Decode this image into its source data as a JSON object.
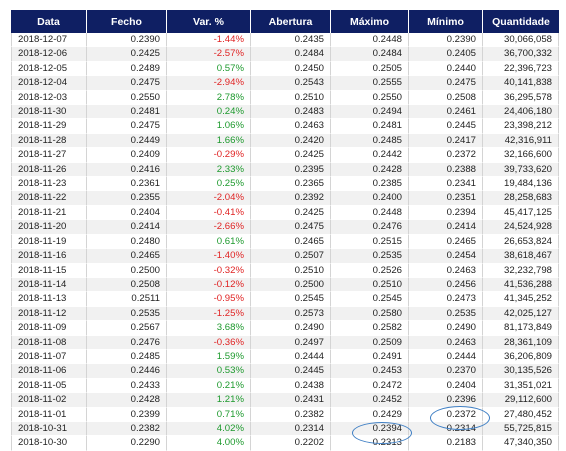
{
  "table": {
    "headers": [
      "Data",
      "Fecho",
      "Var. %",
      "Abertura",
      "Máximo",
      "Mínimo",
      "Quantidade"
    ],
    "rows": [
      {
        "data": "2018-12-07",
        "fecho": "0.2390",
        "var": "-1.44%",
        "sign": "neg",
        "abertura": "0.2435",
        "maximo": "0.2448",
        "minimo": "0.2390",
        "quantidade": "30,066,058"
      },
      {
        "data": "2018-12-06",
        "fecho": "0.2425",
        "var": "-2.57%",
        "sign": "neg",
        "abertura": "0.2484",
        "maximo": "0.2484",
        "minimo": "0.2405",
        "quantidade": "36,700,332"
      },
      {
        "data": "2018-12-05",
        "fecho": "0.2489",
        "var": "0.57%",
        "sign": "pos",
        "abertura": "0.2450",
        "maximo": "0.2505",
        "minimo": "0.2440",
        "quantidade": "22,396,723"
      },
      {
        "data": "2018-12-04",
        "fecho": "0.2475",
        "var": "-2.94%",
        "sign": "neg",
        "abertura": "0.2543",
        "maximo": "0.2555",
        "minimo": "0.2475",
        "quantidade": "40,141,838"
      },
      {
        "data": "2018-12-03",
        "fecho": "0.2550",
        "var": "2.78%",
        "sign": "pos",
        "abertura": "0.2510",
        "maximo": "0.2550",
        "minimo": "0.2508",
        "quantidade": "36,295,578"
      },
      {
        "data": "2018-11-30",
        "fecho": "0.2481",
        "var": "0.24%",
        "sign": "pos",
        "abertura": "0.2483",
        "maximo": "0.2494",
        "minimo": "0.2461",
        "quantidade": "24,406,180"
      },
      {
        "data": "2018-11-29",
        "fecho": "0.2475",
        "var": "1.06%",
        "sign": "pos",
        "abertura": "0.2463",
        "maximo": "0.2481",
        "minimo": "0.2445",
        "quantidade": "23,398,212"
      },
      {
        "data": "2018-11-28",
        "fecho": "0.2449",
        "var": "1.66%",
        "sign": "pos",
        "abertura": "0.2420",
        "maximo": "0.2485",
        "minimo": "0.2417",
        "quantidade": "42,316,911"
      },
      {
        "data": "2018-11-27",
        "fecho": "0.2409",
        "var": "-0.29%",
        "sign": "neg",
        "abertura": "0.2425",
        "maximo": "0.2442",
        "minimo": "0.2372",
        "quantidade": "32,166,600"
      },
      {
        "data": "2018-11-26",
        "fecho": "0.2416",
        "var": "2.33%",
        "sign": "pos",
        "abertura": "0.2395",
        "maximo": "0.2428",
        "minimo": "0.2388",
        "quantidade": "39,733,620"
      },
      {
        "data": "2018-11-23",
        "fecho": "0.2361",
        "var": "0.25%",
        "sign": "pos",
        "abertura": "0.2365",
        "maximo": "0.2385",
        "minimo": "0.2341",
        "quantidade": "19,484,136"
      },
      {
        "data": "2018-11-22",
        "fecho": "0.2355",
        "var": "-2.04%",
        "sign": "neg",
        "abertura": "0.2392",
        "maximo": "0.2400",
        "minimo": "0.2351",
        "quantidade": "28,258,683"
      },
      {
        "data": "2018-11-21",
        "fecho": "0.2404",
        "var": "-0.41%",
        "sign": "neg",
        "abertura": "0.2425",
        "maximo": "0.2448",
        "minimo": "0.2394",
        "quantidade": "45,417,125"
      },
      {
        "data": "2018-11-20",
        "fecho": "0.2414",
        "var": "-2.66%",
        "sign": "neg",
        "abertura": "0.2475",
        "maximo": "0.2476",
        "minimo": "0.2414",
        "quantidade": "24,524,928"
      },
      {
        "data": "2018-11-19",
        "fecho": "0.2480",
        "var": "0.61%",
        "sign": "pos",
        "abertura": "0.2465",
        "maximo": "0.2515",
        "minimo": "0.2465",
        "quantidade": "26,653,824"
      },
      {
        "data": "2018-11-16",
        "fecho": "0.2465",
        "var": "-1.40%",
        "sign": "neg",
        "abertura": "0.2507",
        "maximo": "0.2535",
        "minimo": "0.2454",
        "quantidade": "38,618,467"
      },
      {
        "data": "2018-11-15",
        "fecho": "0.2500",
        "var": "-0.32%",
        "sign": "neg",
        "abertura": "0.2510",
        "maximo": "0.2526",
        "minimo": "0.2463",
        "quantidade": "32,232,798"
      },
      {
        "data": "2018-11-14",
        "fecho": "0.2508",
        "var": "-0.12%",
        "sign": "neg",
        "abertura": "0.2500",
        "maximo": "0.2510",
        "minimo": "0.2456",
        "quantidade": "41,536,288"
      },
      {
        "data": "2018-11-13",
        "fecho": "0.2511",
        "var": "-0.95%",
        "sign": "neg",
        "abertura": "0.2545",
        "maximo": "0.2545",
        "minimo": "0.2473",
        "quantidade": "41,345,252"
      },
      {
        "data": "2018-11-12",
        "fecho": "0.2535",
        "var": "-1.25%",
        "sign": "neg",
        "abertura": "0.2573",
        "maximo": "0.2580",
        "minimo": "0.2535",
        "quantidade": "42,025,127"
      },
      {
        "data": "2018-11-09",
        "fecho": "0.2567",
        "var": "3.68%",
        "sign": "pos",
        "abertura": "0.2490",
        "maximo": "0.2582",
        "minimo": "0.2490",
        "quantidade": "81,173,849"
      },
      {
        "data": "2018-11-08",
        "fecho": "0.2476",
        "var": "-0.36%",
        "sign": "neg",
        "abertura": "0.2497",
        "maximo": "0.2509",
        "minimo": "0.2463",
        "quantidade": "28,361,109"
      },
      {
        "data": "2018-11-07",
        "fecho": "0.2485",
        "var": "1.59%",
        "sign": "pos",
        "abertura": "0.2444",
        "maximo": "0.2491",
        "minimo": "0.2444",
        "quantidade": "36,206,809"
      },
      {
        "data": "2018-11-06",
        "fecho": "0.2446",
        "var": "0.53%",
        "sign": "pos",
        "abertura": "0.2445",
        "maximo": "0.2453",
        "minimo": "0.2370",
        "quantidade": "30,135,526"
      },
      {
        "data": "2018-11-05",
        "fecho": "0.2433",
        "var": "0.21%",
        "sign": "pos",
        "abertura": "0.2438",
        "maximo": "0.2472",
        "minimo": "0.2404",
        "quantidade": "31,351,021"
      },
      {
        "data": "2018-11-02",
        "fecho": "0.2428",
        "var": "1.21%",
        "sign": "pos",
        "abertura": "0.2431",
        "maximo": "0.2452",
        "minimo": "0.2396",
        "quantidade": "29,112,600"
      },
      {
        "data": "2018-11-01",
        "fecho": "0.2399",
        "var": "0.71%",
        "sign": "pos",
        "abertura": "0.2382",
        "maximo": "0.2429",
        "minimo": "0.2372",
        "quantidade": "27,480,452"
      },
      {
        "data": "2018-10-31",
        "fecho": "0.2382",
        "var": "4.02%",
        "sign": "pos",
        "abertura": "0.2314",
        "maximo": "0.2394",
        "minimo": "0.2314",
        "quantidade": "55,725,815"
      },
      {
        "data": "2018-10-30",
        "fecho": "0.2290",
        "var": "4.00%",
        "sign": "pos",
        "abertura": "0.2202",
        "maximo": "0.2313",
        "minimo": "0.2183",
        "quantidade": "47,340,350"
      }
    ]
  },
  "colors": {
    "header_bg": "#0f1f63",
    "negative": "#e02424",
    "positive": "#1e9a2e",
    "annotation": "#3f7fc4"
  }
}
